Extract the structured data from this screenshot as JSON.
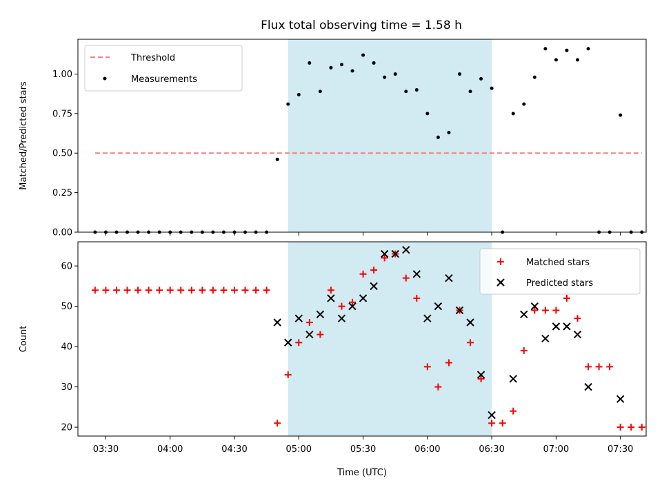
{
  "title": "Flux total observing time = 1.58 h",
  "x_axis": {
    "label": "Time (UTC)",
    "ticks": [
      "03:30",
      "04:00",
      "04:30",
      "05:00",
      "05:30",
      "06:00",
      "06:30",
      "07:00",
      "07:30"
    ],
    "range": [
      "03:17",
      "07:42"
    ]
  },
  "shaded_region": {
    "start": "04:55",
    "end": "06:30",
    "color": "#add8e6"
  },
  "colors": {
    "threshold": "#f08080",
    "measurements": "#000000",
    "matched": "#ff0000",
    "predicted": "#000000",
    "shade": "#add8e6"
  },
  "chart_data": [
    {
      "type": "scatter",
      "ylabel": "Matched/Predicted stars",
      "ylim": [
        0,
        1.22
      ],
      "yticks": [
        "0.00",
        "0.25",
        "0.50",
        "0.75",
        "1.00"
      ],
      "legend_position": "upper-left",
      "threshold": {
        "name": "Threshold",
        "value": 0.5,
        "x_range": [
          "03:25",
          "07:40"
        ]
      },
      "series": [
        {
          "name": "Measurements",
          "x": [
            "03:25",
            "03:30",
            "03:35",
            "03:40",
            "03:45",
            "03:50",
            "03:55",
            "04:00",
            "04:05",
            "04:10",
            "04:15",
            "04:20",
            "04:25",
            "04:30",
            "04:35",
            "04:40",
            "04:45",
            "04:50",
            "04:55",
            "05:00",
            "05:05",
            "05:10",
            "05:15",
            "05:20",
            "05:25",
            "05:30",
            "05:35",
            "05:40",
            "05:45",
            "05:50",
            "05:55",
            "06:00",
            "06:05",
            "06:10",
            "06:15",
            "06:20",
            "06:25",
            "06:30",
            "06:35",
            "06:40",
            "06:45",
            "06:50",
            "06:55",
            "07:00",
            "07:05",
            "07:10",
            "07:15",
            "07:20",
            "07:25",
            "07:30",
            "07:35",
            "07:40"
          ],
          "y": [
            0,
            0,
            0,
            0,
            0,
            0,
            0,
            0,
            0,
            0,
            0,
            0,
            0,
            0,
            0,
            0,
            0,
            0.46,
            0.81,
            0.87,
            1.07,
            0.89,
            1.04,
            1.06,
            1.02,
            1.12,
            1.07,
            0.98,
            1.0,
            0.89,
            0.9,
            0.75,
            0.6,
            0.63,
            1.0,
            0.89,
            0.97,
            0.91,
            0.0,
            0.75,
            0.81,
            0.98,
            1.16,
            1.09,
            1.15,
            1.09,
            1.16,
            0.0,
            0.0,
            0.74,
            0.0,
            0.0
          ]
        }
      ]
    },
    {
      "type": "scatter",
      "ylabel": "Count",
      "ylim": [
        17.8,
        66
      ],
      "yticks": [
        "20",
        "30",
        "40",
        "50",
        "60"
      ],
      "legend_position": "upper-right",
      "series": [
        {
          "name": "Matched stars",
          "marker": "plus",
          "x": [
            "03:25",
            "03:30",
            "03:35",
            "03:40",
            "03:45",
            "03:50",
            "03:55",
            "04:00",
            "04:05",
            "04:10",
            "04:15",
            "04:20",
            "04:25",
            "04:30",
            "04:35",
            "04:40",
            "04:45",
            "04:50",
            "04:55",
            "05:00",
            "05:05",
            "05:10",
            "05:15",
            "05:20",
            "05:25",
            "05:30",
            "05:35",
            "05:40",
            "05:45",
            "05:50",
            "05:55",
            "06:00",
            "06:05",
            "06:10",
            "06:15",
            "06:20",
            "06:25",
            "06:30",
            "06:35",
            "06:40",
            "06:45",
            "06:50",
            "06:55",
            "07:00",
            "07:05",
            "07:10",
            "07:15",
            "07:20",
            "07:25",
            "07:30",
            "07:35",
            "07:40"
          ],
          "y": [
            54,
            54,
            54,
            54,
            54,
            54,
            54,
            54,
            54,
            54,
            54,
            54,
            54,
            54,
            54,
            54,
            54,
            21,
            33,
            41,
            46,
            43,
            54,
            50,
            51,
            58,
            59,
            62,
            63,
            57,
            52,
            35,
            30,
            36,
            49,
            41,
            32,
            21,
            21,
            24,
            39,
            49,
            49,
            49,
            52,
            47,
            35,
            35,
            35,
            20,
            20,
            20
          ]
        },
        {
          "name": "Predicted stars",
          "marker": "x",
          "x": [
            "04:50",
            "04:55",
            "05:00",
            "05:05",
            "05:10",
            "05:15",
            "05:20",
            "05:25",
            "05:30",
            "05:35",
            "05:40",
            "05:45",
            "05:50",
            "05:55",
            "06:00",
            "06:05",
            "06:10",
            "06:15",
            "06:20",
            "06:25",
            "06:30",
            "06:40",
            "06:45",
            "06:50",
            "06:55",
            "07:00",
            "07:05",
            "07:10",
            "07:15",
            "07:30"
          ],
          "y": [
            46,
            41,
            47,
            43,
            48,
            52,
            47,
            50,
            52,
            55,
            63,
            63,
            64,
            58,
            47,
            50,
            57,
            49,
            46,
            33,
            23,
            32,
            48,
            50,
            42,
            45,
            45,
            43,
            30,
            27
          ]
        }
      ]
    }
  ]
}
